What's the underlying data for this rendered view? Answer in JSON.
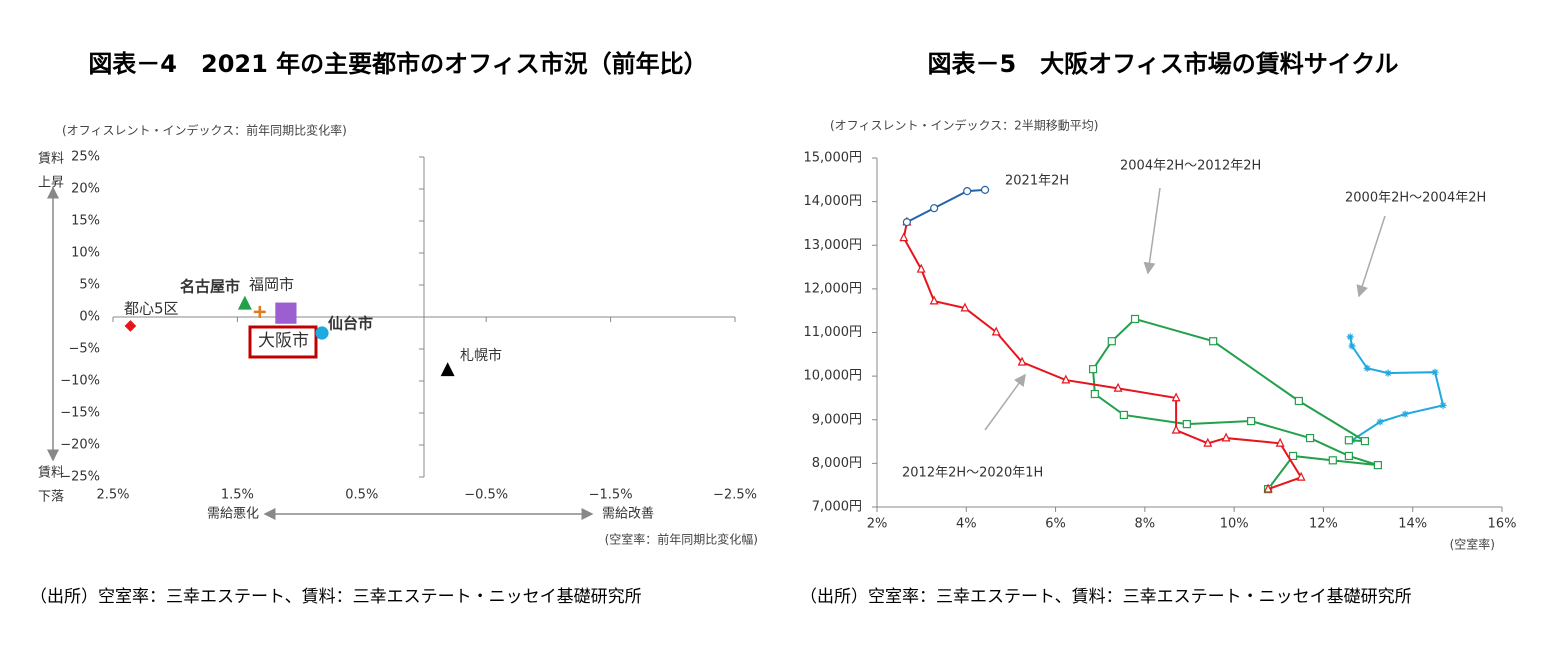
{
  "chart_data": [
    {
      "type": "scatter",
      "title": "図表－4　2021 年の主要都市のオフィス市況（前年比）",
      "y_label": "(オフィスレント・インデックス：前年同期比変化率)",
      "x_label": "(空室率：前年同期比変化幅)",
      "y_up": [
        "賃料",
        "上昇"
      ],
      "y_down": [
        "賃料",
        "下落"
      ],
      "x_left": "需給悪化",
      "x_right": "需給改善",
      "source": "（出所）空室率：三幸エステート、賃料：三幸エステート・ニッセイ基礎研究所",
      "xlim": [
        2.5,
        -2.5
      ],
      "xticks": [
        {
          "value": 2.5,
          "label": "2.5%"
        },
        {
          "value": 1.5,
          "label": "1.5%"
        },
        {
          "value": 0.5,
          "label": "0.5%"
        },
        {
          "value": -0.5,
          "label": "−0.5%"
        },
        {
          "value": -1.5,
          "label": "−1.5%"
        },
        {
          "value": -2.5,
          "label": "−2.5%"
        }
      ],
      "ylim": [
        -25,
        25
      ],
      "yticks": [
        {
          "value": 25,
          "label": "25%"
        },
        {
          "value": 20,
          "label": "20%"
        },
        {
          "value": 15,
          "label": "15%"
        },
        {
          "value": 10,
          "label": "10%"
        },
        {
          "value": 5,
          "label": "5%"
        },
        {
          "value": 0,
          "label": "0%"
        },
        {
          "value": -5,
          "label": "−5%"
        },
        {
          "value": -10,
          "label": "−10%"
        },
        {
          "value": -15,
          "label": "−15%"
        },
        {
          "value": -20,
          "label": "−20%"
        },
        {
          "value": -25,
          "label": "−25%"
        }
      ],
      "series": [
        {
          "name": "都心5区",
          "color": "#e8141c",
          "marker": "diamond",
          "x": [
            2.36
          ],
          "values": [
            -1.4
          ]
        },
        {
          "name": "名古屋市",
          "color": "#22a04b",
          "marker": "triangle",
          "x": [
            1.44
          ],
          "values": [
            2.0
          ]
        },
        {
          "name": "福岡市",
          "color": "#e07b20",
          "marker": "plus",
          "x": [
            1.32
          ],
          "values": [
            0.8
          ]
        },
        {
          "name": "大阪市",
          "color": "#9b5fd0",
          "marker": "square",
          "x": [
            1.11
          ],
          "values": [
            0.6
          ]
        },
        {
          "name": "仙台市",
          "color": "#1ea9e1",
          "marker": "circle",
          "x": [
            0.82
          ],
          "values": [
            -2.5
          ]
        },
        {
          "name": "札幌市",
          "color": "#000000",
          "marker": "triangle",
          "x": [
            -0.19
          ],
          "values": [
            -8.4
          ]
        }
      ]
    },
    {
      "type": "line",
      "title": "図表－5　大阪オフィス市場の賃料サイクル",
      "y_label": "(オフィスレント・インデックス：2半期移動平均)",
      "x_label": "(空室率)",
      "source": "（出所）空室率：三幸エステート、賃料：三幸エステート・ニッセイ基礎研究所",
      "xlim": [
        2,
        16
      ],
      "xticks": [
        {
          "value": 2,
          "label": "2%"
        },
        {
          "value": 4,
          "label": "4%"
        },
        {
          "value": 6,
          "label": "6%"
        },
        {
          "value": 8,
          "label": "8%"
        },
        {
          "value": 10,
          "label": "10%"
        },
        {
          "value": 12,
          "label": "12%"
        },
        {
          "value": 14,
          "label": "14%"
        },
        {
          "value": 16,
          "label": "16%"
        }
      ],
      "ylim": [
        7000,
        15000
      ],
      "yticks": [
        {
          "value": 7000,
          "label": "7,000円"
        },
        {
          "value": 8000,
          "label": "8,000円"
        },
        {
          "value": 9000,
          "label": "9,000円"
        },
        {
          "value": 10000,
          "label": "10,000円"
        },
        {
          "value": 11000,
          "label": "11,000円"
        },
        {
          "value": 12000,
          "label": "12,000円"
        },
        {
          "value": 13000,
          "label": "13,000円"
        },
        {
          "value": 14000,
          "label": "14,000円"
        },
        {
          "value": 15000,
          "label": "15,000円"
        }
      ],
      "series": [
        {
          "name": "2000年2H～2004年2H",
          "color": "#1ea9e1",
          "label_color": "#2464a4",
          "marker": "star",
          "x": [
            12.6,
            12.64,
            12.98,
            13.45,
            14.5,
            14.68,
            13.83,
            13.27,
            12.64
          ],
          "values": [
            10900,
            10690,
            10180,
            10070,
            10090,
            9330,
            9130,
            8950,
            8530
          ]
        },
        {
          "name": "2004年2H～2012年2H",
          "color": "#22a04b",
          "marker": "square",
          "x": [
            12.57,
            12.93,
            11.45,
            9.53,
            7.78,
            7.26,
            6.84,
            6.88,
            7.53,
            8.94,
            10.38,
            11.7,
            12.57,
            13.22,
            12.21,
            11.32,
            10.76
          ],
          "values": [
            8530,
            8510,
            9430,
            10800,
            11310,
            10800,
            10160,
            9590,
            9110,
            8900,
            8970,
            8580,
            8170,
            7960,
            8070,
            8170,
            7410
          ]
        },
        {
          "name": "2012年2H～2020年1H",
          "color": "#e8141c",
          "marker": "triangle",
          "x": [
            10.76,
            11.5,
            11.03,
            9.82,
            9.41,
            8.7,
            8.7,
            7.4,
            6.23,
            5.25,
            4.67,
            3.97,
            3.28,
            2.99,
            2.6,
            2.67
          ],
          "values": [
            7410,
            7680,
            8460,
            8580,
            8460,
            8760,
            9500,
            9720,
            9910,
            10320,
            11010,
            11560,
            11720,
            12450,
            13170,
            13530
          ]
        },
        {
          "name": "2021年2H",
          "color": "#2464a4",
          "marker": "circle",
          "x": [
            2.67,
            3.28,
            4.02,
            4.42
          ],
          "values": [
            13530,
            13850,
            14240,
            14270
          ]
        }
      ]
    }
  ]
}
